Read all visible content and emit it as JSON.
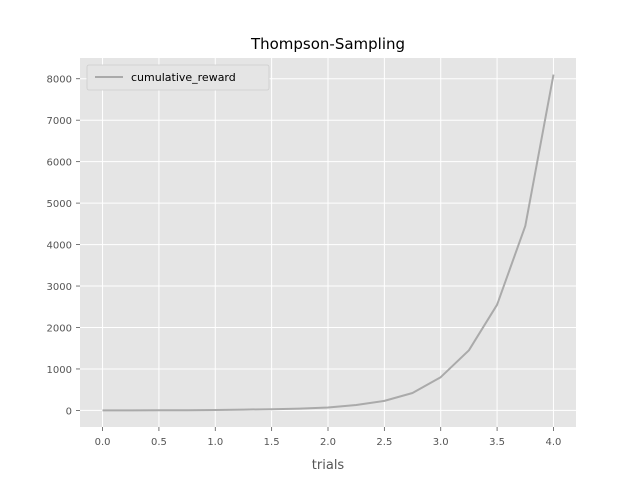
{
  "chart_data": {
    "type": "line",
    "title": "Thompson-Sampling",
    "xlabel": "trials",
    "ylabel": "",
    "xlim": [
      -0.2,
      4.2
    ],
    "ylim": [
      -400,
      8500
    ],
    "xticks": [
      0.0,
      0.5,
      1.0,
      1.5,
      2.0,
      2.5,
      3.0,
      3.5,
      4.0
    ],
    "xtick_labels": [
      "0.0",
      "0.5",
      "1.0",
      "1.5",
      "2.0",
      "2.5",
      "3.0",
      "3.5",
      "4.0"
    ],
    "yticks": [
      0,
      1000,
      2000,
      3000,
      4000,
      5000,
      6000,
      7000,
      8000
    ],
    "ytick_labels": [
      "0",
      "1000",
      "2000",
      "3000",
      "4000",
      "5000",
      "6000",
      "7000",
      "8000"
    ],
    "grid": true,
    "legend_position": "top-left",
    "series": [
      {
        "name": "cumulative_reward",
        "color": "#aaaaaa",
        "x": [
          0.0,
          0.25,
          0.5,
          0.75,
          1.0,
          1.25,
          1.5,
          1.75,
          2.0,
          2.25,
          2.5,
          2.75,
          3.0,
          3.25,
          3.5,
          3.75,
          4.0
        ],
        "y": [
          0,
          1,
          2,
          5,
          10,
          20,
          30,
          45,
          70,
          130,
          230,
          420,
          800,
          1450,
          2550,
          4450,
          8100
        ]
      }
    ]
  },
  "colors": {
    "plot_background": "#e5e5e5",
    "grid": "#ffffff",
    "line": "#aaaaaa"
  }
}
